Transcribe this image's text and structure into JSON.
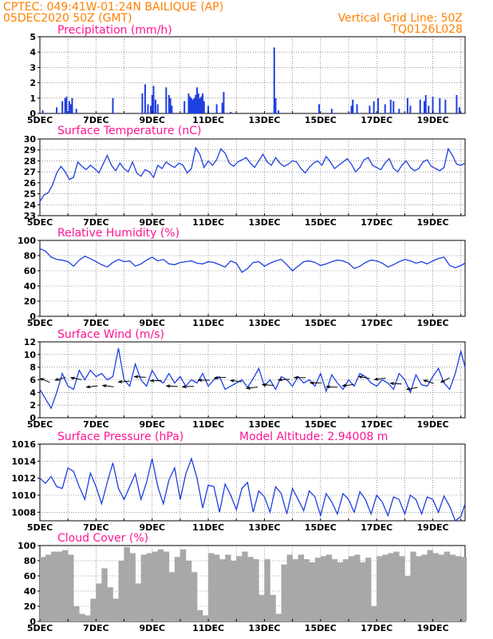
{
  "header": {
    "left_line1": "CPTEC:   049:41W-01:24N  BAILIQUE (AP)",
    "left_line2": "05DEC2020 50Z (GMT)",
    "right_line1": "Vertical Grid Line: 50Z",
    "right_line2": "TQ0126L028"
  },
  "colors": {
    "header": "#ff8000",
    "title": "#ff1493",
    "line": "#1f3fe0",
    "cloud": "#a8a8a8",
    "wind_arrow": "#000000"
  },
  "date_ticks": [
    "5DEC",
    "7DEC",
    "9DEC",
    "11DEC",
    "13DEC",
    "15DEC",
    "17DEC",
    "19DEC"
  ],
  "model_altitude": "Model Altitude: 2.94008 m",
  "chart_data": [
    {
      "type": "bar",
      "title": "Precipitation (mm/h)",
      "ylim": [
        0,
        5
      ],
      "yticks": [
        0,
        1,
        2,
        3,
        4,
        5
      ],
      "x_unit": "days since 5DEC",
      "bars": [
        [
          0.1,
          0.2
        ],
        [
          0.6,
          0.4
        ],
        [
          0.8,
          0.8
        ],
        [
          0.9,
          1.0
        ],
        [
          0.95,
          1.1
        ],
        [
          1.05,
          0.8
        ],
        [
          1.1,
          0.6
        ],
        [
          1.15,
          1.0
        ],
        [
          1.3,
          0.3
        ],
        [
          2.6,
          1.0
        ],
        [
          3.65,
          1.3
        ],
        [
          3.75,
          1.9
        ],
        [
          3.85,
          0.6
        ],
        [
          3.95,
          0.5
        ],
        [
          4.0,
          1.2
        ],
        [
          4.05,
          1.8
        ],
        [
          4.12,
          0.9
        ],
        [
          4.2,
          0.6
        ],
        [
          4.5,
          1.7
        ],
        [
          4.6,
          1.2
        ],
        [
          4.65,
          1.0
        ],
        [
          4.7,
          0.5
        ],
        [
          5.15,
          0.8
        ],
        [
          5.3,
          1.3
        ],
        [
          5.35,
          1.1
        ],
        [
          5.4,
          1.0
        ],
        [
          5.45,
          0.9
        ],
        [
          5.5,
          1.0
        ],
        [
          5.55,
          1.2
        ],
        [
          5.6,
          1.7
        ],
        [
          5.65,
          1.3
        ],
        [
          5.7,
          1.0
        ],
        [
          5.75,
          1.1
        ],
        [
          5.8,
          1.3
        ],
        [
          5.85,
          0.8
        ],
        [
          6.0,
          0.5
        ],
        [
          6.3,
          0.6
        ],
        [
          6.5,
          0.7
        ],
        [
          6.55,
          1.4
        ],
        [
          6.8,
          0.1
        ],
        [
          8.35,
          4.3
        ],
        [
          8.4,
          1.0
        ],
        [
          8.5,
          0.2
        ],
        [
          9.95,
          0.6
        ],
        [
          10.4,
          0.3
        ],
        [
          11.1,
          0.5
        ],
        [
          11.15,
          0.9
        ],
        [
          11.3,
          0.6
        ],
        [
          11.75,
          0.5
        ],
        [
          11.9,
          0.8
        ],
        [
          12.05,
          1.0
        ],
        [
          12.3,
          0.6
        ],
        [
          12.5,
          0.9
        ],
        [
          12.6,
          0.8
        ],
        [
          12.8,
          0.3
        ],
        [
          13.1,
          1.0
        ],
        [
          13.2,
          0.5
        ],
        [
          13.55,
          0.9
        ],
        [
          13.7,
          0.8
        ],
        [
          13.75,
          1.2
        ],
        [
          13.85,
          0.5
        ],
        [
          14.0,
          1.1
        ],
        [
          14.25,
          1.0
        ],
        [
          14.45,
          0.9
        ],
        [
          14.85,
          1.2
        ],
        [
          14.95,
          0.4
        ]
      ]
    },
    {
      "type": "line",
      "title": "Surface Temperature (nC)",
      "ylim": [
        23,
        30
      ],
      "yticks": [
        23,
        24,
        25,
        26,
        27,
        28,
        29,
        30
      ],
      "x": [
        0,
        0.15,
        0.3,
        0.45,
        0.6,
        0.75,
        0.9,
        1.05,
        1.2,
        1.35,
        1.5,
        1.65,
        1.8,
        1.95,
        2.1,
        2.25,
        2.4,
        2.55,
        2.7,
        2.85,
        3.0,
        3.15,
        3.3,
        3.45,
        3.6,
        3.75,
        3.9,
        4.05,
        4.2,
        4.35,
        4.5,
        4.65,
        4.8,
        4.95,
        5.1,
        5.25,
        5.4,
        5.55,
        5.7,
        5.85,
        6.0,
        6.15,
        6.3,
        6.45,
        6.6,
        6.75,
        6.9,
        7.05,
        7.2,
        7.35,
        7.5,
        7.65,
        7.8,
        7.95,
        8.1,
        8.25,
        8.4,
        8.55,
        8.7,
        8.85,
        9.0,
        9.15,
        9.3,
        9.45,
        9.6,
        9.75,
        9.9,
        10.05,
        10.2,
        10.35,
        10.5,
        10.65,
        10.8,
        10.95,
        11.1,
        11.25,
        11.4,
        11.55,
        11.7,
        11.85,
        12.0,
        12.15,
        12.3,
        12.45,
        12.6,
        12.75,
        12.9,
        13.05,
        13.2,
        13.35,
        13.5,
        13.65,
        13.8,
        13.95,
        14.1,
        14.25,
        14.4,
        14.55,
        14.7,
        14.85,
        15.0,
        15.15
      ],
      "y": [
        24.3,
        24.9,
        25.1,
        25.8,
        26.9,
        27.5,
        27.0,
        26.3,
        26.5,
        27.9,
        27.5,
        27.2,
        27.6,
        27.3,
        26.9,
        27.7,
        28.5,
        27.6,
        27.1,
        27.8,
        27.3,
        27.0,
        27.9,
        26.9,
        26.6,
        27.2,
        27.0,
        26.5,
        27.6,
        27.3,
        27.9,
        27.6,
        27.4,
        27.8,
        27.6,
        26.9,
        27.3,
        29.2,
        28.6,
        27.4,
        28.0,
        27.6,
        28.1,
        29.1,
        28.7,
        27.8,
        27.5,
        27.9,
        28.1,
        28.3,
        27.8,
        27.4,
        28.0,
        28.6,
        27.9,
        27.6,
        28.3,
        27.8,
        27.5,
        27.7,
        28.0,
        27.9,
        27.3,
        26.9,
        27.4,
        27.8,
        28.0,
        27.6,
        28.4,
        27.9,
        27.3,
        27.6,
        27.9,
        28.2,
        27.7,
        27.0,
        27.4,
        28.1,
        28.3,
        27.6,
        27.4,
        27.2,
        27.8,
        28.2,
        27.3,
        27.0,
        27.6,
        28.0,
        27.4,
        27.1,
        27.3,
        27.9,
        28.1,
        27.5,
        27.3,
        27.1,
        27.4,
        29.1,
        28.5,
        27.7,
        27.6,
        27.8
      ]
    },
    {
      "type": "line",
      "title": "Relative Humidity (%)",
      "ylim": [
        0,
        100
      ],
      "yticks": [
        0,
        20,
        40,
        60,
        80,
        100
      ],
      "x": [
        0,
        0.2,
        0.4,
        0.6,
        0.8,
        1.0,
        1.2,
        1.4,
        1.6,
        1.8,
        2.0,
        2.2,
        2.4,
        2.6,
        2.8,
        3.0,
        3.2,
        3.4,
        3.6,
        3.8,
        4.0,
        4.2,
        4.4,
        4.6,
        4.8,
        5.0,
        5.2,
        5.4,
        5.6,
        5.8,
        6.0,
        6.2,
        6.4,
        6.6,
        6.8,
        7.0,
        7.2,
        7.4,
        7.6,
        7.8,
        8.0,
        8.2,
        8.4,
        8.6,
        8.8,
        9.0,
        9.2,
        9.4,
        9.6,
        9.8,
        10.0,
        10.2,
        10.4,
        10.6,
        10.8,
        11.0,
        11.2,
        11.4,
        11.6,
        11.8,
        12.0,
        12.2,
        12.4,
        12.6,
        12.8,
        13.0,
        13.2,
        13.4,
        13.6,
        13.8,
        14.0,
        14.2,
        14.4,
        14.6,
        14.8,
        15.0,
        15.15
      ],
      "y": [
        89,
        86,
        78,
        75,
        74,
        72,
        66,
        74,
        79,
        76,
        72,
        68,
        65,
        71,
        75,
        72,
        73,
        66,
        69,
        74,
        78,
        73,
        75,
        69,
        68,
        71,
        72,
        73,
        70,
        69,
        72,
        71,
        68,
        65,
        73,
        70,
        58,
        63,
        71,
        72,
        66,
        70,
        73,
        75,
        68,
        60,
        66,
        72,
        73,
        71,
        67,
        69,
        72,
        74,
        73,
        70,
        63,
        66,
        71,
        74,
        73,
        70,
        65,
        68,
        72,
        75,
        73,
        70,
        72,
        69,
        73,
        76,
        78,
        67,
        64,
        67,
        70
      ]
    },
    {
      "type": "line",
      "title": "Surface Wind (m/s)",
      "ylim": [
        0,
        12
      ],
      "yticks": [
        0,
        2,
        4,
        6,
        8,
        10,
        12
      ],
      "x": [
        0,
        0.2,
        0.4,
        0.6,
        0.8,
        1.0,
        1.2,
        1.4,
        1.6,
        1.8,
        2.0,
        2.2,
        2.4,
        2.6,
        2.8,
        3.0,
        3.2,
        3.4,
        3.6,
        3.8,
        4.0,
        4.2,
        4.4,
        4.6,
        4.8,
        5.0,
        5.2,
        5.4,
        5.6,
        5.8,
        6.0,
        6.2,
        6.4,
        6.6,
        6.8,
        7.0,
        7.2,
        7.4,
        7.6,
        7.8,
        8.0,
        8.2,
        8.4,
        8.6,
        8.8,
        9.0,
        9.2,
        9.4,
        9.6,
        9.8,
        10.0,
        10.2,
        10.4,
        10.6,
        10.8,
        11.0,
        11.2,
        11.4,
        11.6,
        11.8,
        12.0,
        12.2,
        12.4,
        12.6,
        12.8,
        13.0,
        13.2,
        13.4,
        13.6,
        13.8,
        14.0,
        14.2,
        14.4,
        14.6,
        14.8,
        15.0,
        15.15
      ],
      "y": [
        4.5,
        3.0,
        1.5,
        4.0,
        7.0,
        5.0,
        4.5,
        7.5,
        6.0,
        7.5,
        6.5,
        7.0,
        6.0,
        6.5,
        11.0,
        6.0,
        5.0,
        8.5,
        6.0,
        5.0,
        7.5,
        6.0,
        5.5,
        7.0,
        5.5,
        6.5,
        5.0,
        6.0,
        5.5,
        7.0,
        5.0,
        6.0,
        6.5,
        4.5,
        5.0,
        5.5,
        6.0,
        4.8,
        6.2,
        7.8,
        5.0,
        6.0,
        4.5,
        6.5,
        6.0,
        5.0,
        6.5,
        5.5,
        6.0,
        5.0,
        7.0,
        4.2,
        6.8,
        5.5,
        4.5,
        6.0,
        5.0,
        7.0,
        6.5,
        5.5,
        5.0,
        6.0,
        5.5,
        4.5,
        7.0,
        6.0,
        4.0,
        6.8,
        5.2,
        5.0,
        6.5,
        7.8,
        5.5,
        4.5,
        7.0,
        10.5,
        8.0
      ]
    },
    {
      "type": "line",
      "title": "Surface Pressure (hPa)",
      "ylim": [
        1007,
        1016
      ],
      "yticks": [
        1008,
        1010,
        1012,
        1014,
        1016
      ],
      "x": [
        0,
        0.2,
        0.4,
        0.6,
        0.8,
        1.0,
        1.2,
        1.4,
        1.6,
        1.8,
        2.0,
        2.2,
        2.4,
        2.6,
        2.8,
        3.0,
        3.2,
        3.4,
        3.6,
        3.8,
        4.0,
        4.2,
        4.4,
        4.6,
        4.8,
        5.0,
        5.2,
        5.4,
        5.6,
        5.8,
        6.0,
        6.2,
        6.4,
        6.6,
        6.8,
        7.0,
        7.2,
        7.4,
        7.6,
        7.8,
        8.0,
        8.2,
        8.4,
        8.6,
        8.8,
        9.0,
        9.2,
        9.4,
        9.6,
        9.8,
        10.0,
        10.2,
        10.4,
        10.6,
        10.8,
        11.0,
        11.2,
        11.4,
        11.6,
        11.8,
        12.0,
        12.2,
        12.4,
        12.6,
        12.8,
        13.0,
        13.2,
        13.4,
        13.6,
        13.8,
        14.0,
        14.2,
        14.4,
        14.6,
        14.8,
        15.0,
        15.15
      ],
      "y": [
        1012.0,
        1011.4,
        1012.2,
        1011.0,
        1010.8,
        1013.2,
        1012.8,
        1011.0,
        1009.5,
        1012.6,
        1011.0,
        1009.0,
        1011.5,
        1013.8,
        1010.8,
        1009.5,
        1011.0,
        1012.5,
        1009.5,
        1011.5,
        1014.3,
        1011.0,
        1009.0,
        1011.8,
        1013.2,
        1009.5,
        1012.5,
        1014.3,
        1012.0,
        1008.5,
        1011.2,
        1011.0,
        1008.0,
        1011.3,
        1010.0,
        1008.3,
        1010.8,
        1011.5,
        1008.0,
        1010.5,
        1009.8,
        1008.0,
        1011.0,
        1010.2,
        1007.8,
        1010.8,
        1009.5,
        1008.2,
        1010.5,
        1009.8,
        1007.6,
        1010.2,
        1009.2,
        1007.8,
        1010.2,
        1009.5,
        1008.0,
        1010.4,
        1009.5,
        1007.8,
        1010.0,
        1009.2,
        1007.6,
        1009.8,
        1009.5,
        1007.8,
        1010.0,
        1009.5,
        1007.8,
        1009.8,
        1009.5,
        1008.0,
        1009.9,
        1008.7,
        1007.0,
        1007.5,
        1009.0
      ]
    },
    {
      "type": "bar",
      "title": "Cloud Cover (%)",
      "ylim": [
        0,
        100
      ],
      "yticks": [
        0,
        20,
        40,
        60,
        80,
        100
      ],
      "x": [
        0,
        0.2,
        0.4,
        0.6,
        0.8,
        1.0,
        1.2,
        1.4,
        1.6,
        1.8,
        2.0,
        2.2,
        2.4,
        2.6,
        2.8,
        3.0,
        3.2,
        3.4,
        3.6,
        3.8,
        4.0,
        4.2,
        4.4,
        4.6,
        4.8,
        5.0,
        5.2,
        5.4,
        5.6,
        5.8,
        6.0,
        6.2,
        6.4,
        6.6,
        6.8,
        7.0,
        7.2,
        7.4,
        7.6,
        7.8,
        8.0,
        8.2,
        8.4,
        8.6,
        8.8,
        9.0,
        9.2,
        9.4,
        9.6,
        9.8,
        10.0,
        10.2,
        10.4,
        10.6,
        10.8,
        11.0,
        11.2,
        11.4,
        11.6,
        11.8,
        12.0,
        12.2,
        12.4,
        12.6,
        12.8,
        13.0,
        13.2,
        13.4,
        13.6,
        13.8,
        14.0,
        14.2,
        14.4,
        14.6,
        14.8,
        15.0
      ],
      "y": [
        85,
        88,
        92,
        92,
        94,
        88,
        20,
        10,
        8,
        30,
        50,
        70,
        45,
        30,
        80,
        98,
        90,
        50,
        88,
        90,
        92,
        95,
        92,
        65,
        85,
        95,
        80,
        65,
        15,
        8,
        90,
        88,
        82,
        88,
        80,
        86,
        92,
        85,
        82,
        35,
        82,
        35,
        10,
        75,
        88,
        82,
        88,
        82,
        78,
        84,
        86,
        88,
        82,
        78,
        82,
        86,
        88,
        78,
        84,
        20,
        86,
        88,
        90,
        92,
        86,
        60,
        92,
        86,
        88,
        94,
        90,
        88,
        92,
        88,
        86,
        85
      ]
    }
  ]
}
